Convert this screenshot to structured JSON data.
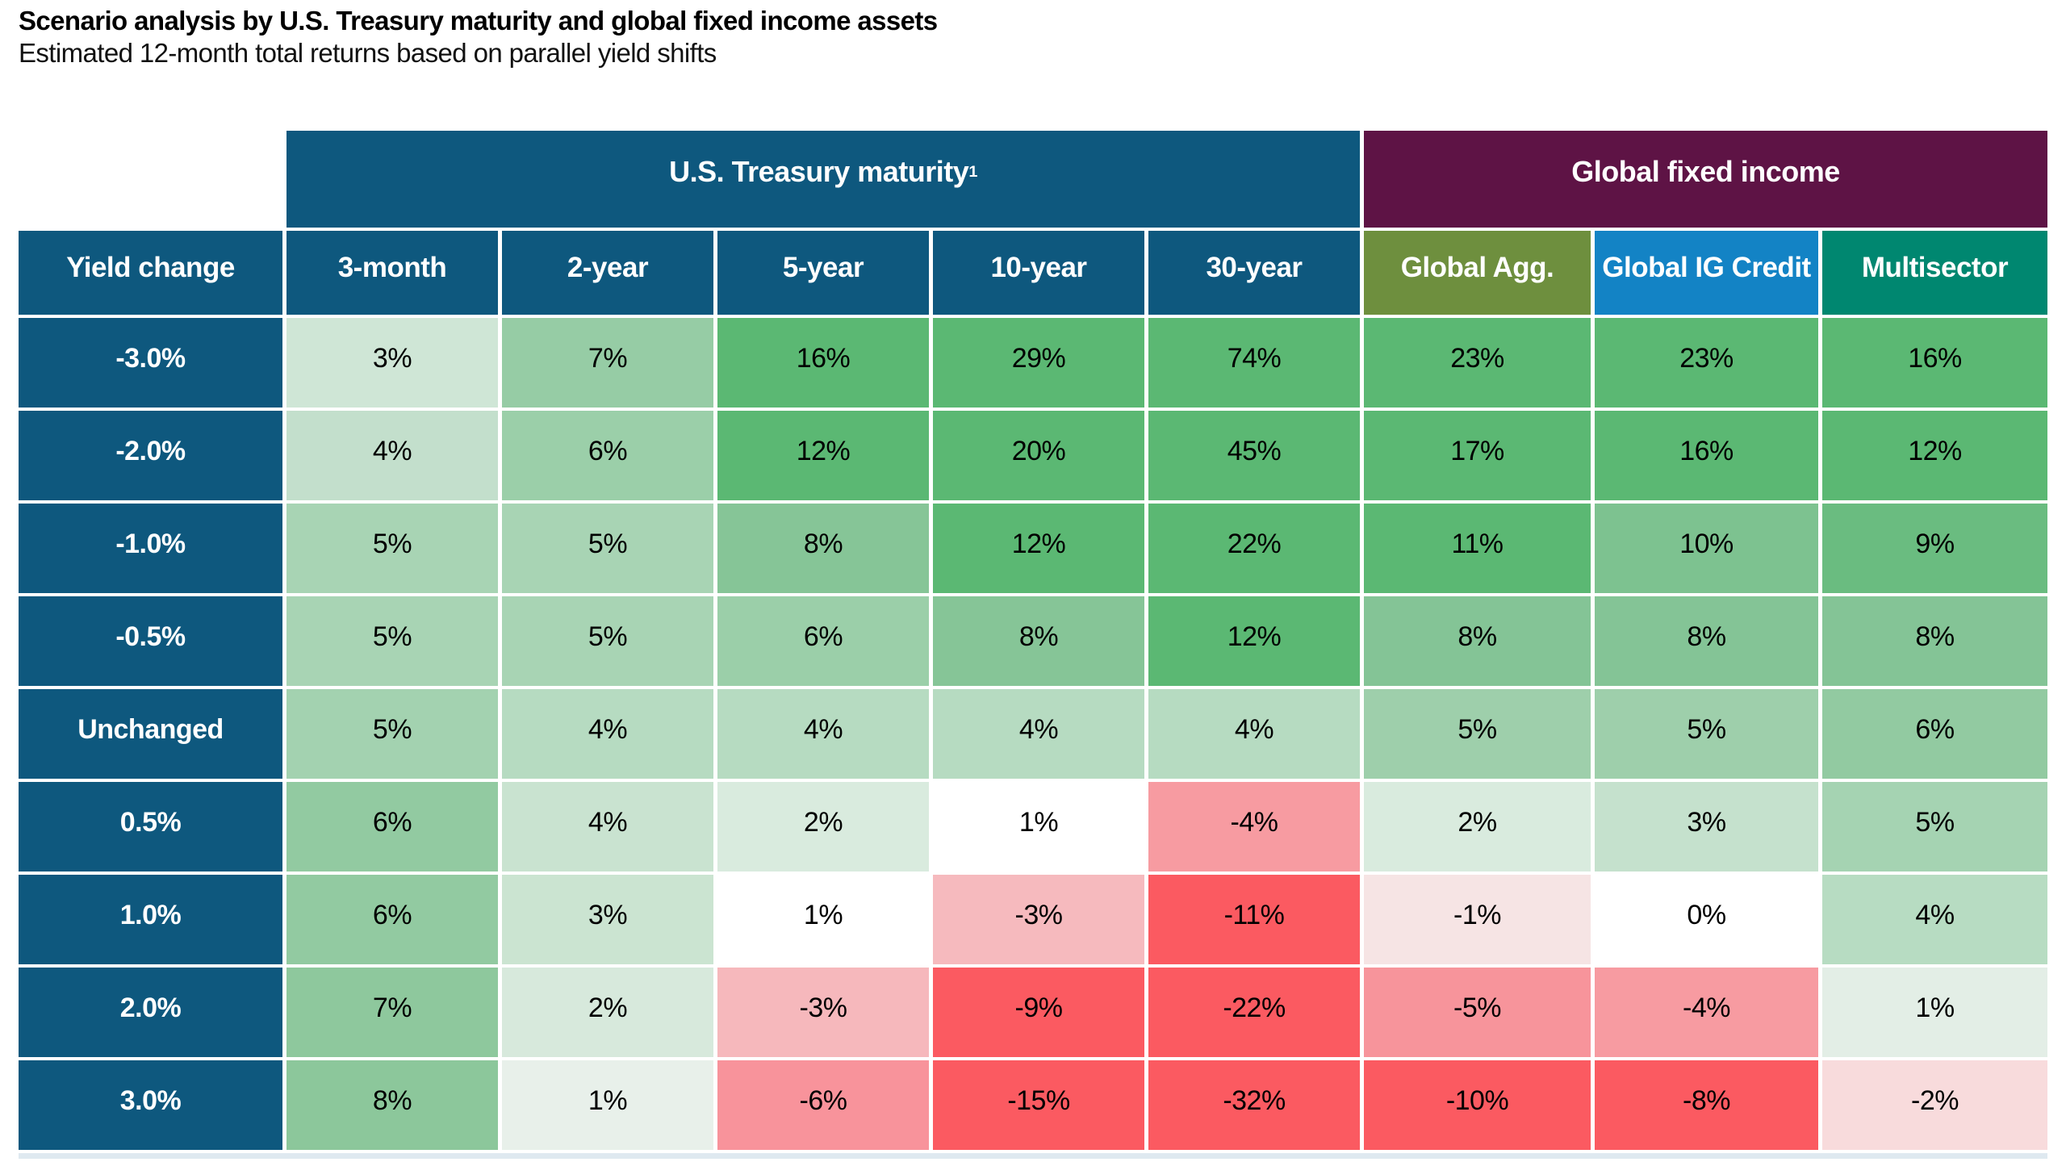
{
  "header": {
    "title": "Scenario analysis by U.S. Treasury maturity and global fixed income assets",
    "subtitle": "Estimated 12-month total returns based on parallel yield shifts"
  },
  "palette": {
    "treasury_header_bg": "#0e587e",
    "global_header_bg": "#5e1345",
    "row_label_bg": "#0e587e",
    "header_text": "#ffffff",
    "cell_text": "#000000",
    "positive_max_green": "#5bb873",
    "negative_max_red": "#fb5a61",
    "neutral_white": "#ffffff",
    "bottom_strip": "#dfe9f0"
  },
  "chart_data": {
    "type": "heatmap",
    "title": "Scenario analysis by U.S. Treasury maturity and global fixed income assets",
    "subtitle": "Estimated 12-month total returns based on parallel yield shifts",
    "value_format": "percent",
    "row_label_header": "Yield change",
    "column_groups": [
      {
        "label": "U.S. Treasury maturity",
        "footnote_marker": "1",
        "span": 5,
        "bg": "#0e587e"
      },
      {
        "label": "Global fixed income",
        "footnote_marker": "",
        "span": 3,
        "bg": "#5e1345"
      }
    ],
    "columns": [
      {
        "label": "3-month",
        "bg": "#0e587e"
      },
      {
        "label": "2-year",
        "bg": "#0e587e"
      },
      {
        "label": "5-year",
        "bg": "#0e587e"
      },
      {
        "label": "10-year",
        "bg": "#0e587e"
      },
      {
        "label": "30-year",
        "bg": "#0e587e"
      },
      {
        "label": "Global Agg.",
        "bg": "#6e8f3e"
      },
      {
        "label": "Global IG Credit",
        "bg": "#1383c5"
      },
      {
        "label": "Multisector",
        "bg": "#008770"
      }
    ],
    "rows": [
      {
        "label": "-3.0%",
        "values": [
          3,
          7,
          16,
          29,
          74,
          23,
          23,
          16
        ],
        "colors": [
          "#cfe6d6",
          "#96cca5",
          "#5bb873",
          "#5bb873",
          "#5bb873",
          "#5bb873",
          "#5bb873",
          "#5bb873"
        ]
      },
      {
        "label": "-2.0%",
        "values": [
          4,
          6,
          12,
          20,
          45,
          17,
          16,
          12
        ],
        "colors": [
          "#c3dfcc",
          "#9bcfa9",
          "#5bb873",
          "#5bb873",
          "#5bb873",
          "#5bb873",
          "#5bb873",
          "#5bb873"
        ]
      },
      {
        "label": "-1.0%",
        "values": [
          5,
          5,
          8,
          12,
          22,
          11,
          10,
          9
        ],
        "colors": [
          "#a8d4b4",
          "#a8d4b4",
          "#86c597",
          "#5bb873",
          "#5bb873",
          "#5bb873",
          "#7dc290",
          "#6abc80"
        ]
      },
      {
        "label": "-0.5%",
        "values": [
          5,
          5,
          6,
          8,
          12,
          8,
          8,
          8
        ],
        "colors": [
          "#a8d4b4",
          "#a8d4b4",
          "#9bcfa9",
          "#86c597",
          "#5bb873",
          "#84c496",
          "#84c496",
          "#84c496"
        ]
      },
      {
        "label": "Unchanged",
        "values": [
          5,
          4,
          4,
          4,
          4,
          5,
          5,
          6
        ],
        "colors": [
          "#a3d2b0",
          "#b6dbc1",
          "#b6dbc1",
          "#b6dbc1",
          "#b6dbc1",
          "#9ecfab",
          "#9ecfab",
          "#92caa1"
        ]
      },
      {
        "label": "0.5%",
        "values": [
          6,
          4,
          2,
          1,
          -4,
          2,
          3,
          5
        ],
        "colors": [
          "#92caa1",
          "#c9e3d0",
          "#d9ebde",
          "#ffffff",
          "#f79ba1",
          "#d9ebde",
          "#c5e1cd",
          "#a5d3b2"
        ]
      },
      {
        "label": "1.0%",
        "values": [
          6,
          3,
          1,
          -3,
          -11,
          -1,
          0,
          4
        ],
        "colors": [
          "#92caa1",
          "#cbe4d1",
          "#ffffff",
          "#f6babe",
          "#fb5a61",
          "#f6e4e4",
          "#ffffff",
          "#b7dcc2"
        ]
      },
      {
        "label": "2.0%",
        "values": [
          7,
          2,
          -3,
          -9,
          -22,
          -5,
          -4,
          1
        ],
        "colors": [
          "#8ec89d",
          "#d7e9dc",
          "#f6b8bc",
          "#fb5a61",
          "#fb5a61",
          "#f7949b",
          "#f79ba1",
          "#e3eee6"
        ]
      },
      {
        "label": "3.0%",
        "values": [
          8,
          1,
          -6,
          -15,
          -32,
          -10,
          -8,
          -2
        ],
        "colors": [
          "#8cc79b",
          "#e8f0ea",
          "#f8939b",
          "#fb5a61",
          "#fb5a61",
          "#fb5a61",
          "#fb5a61",
          "#f8dbdc"
        ]
      }
    ]
  }
}
